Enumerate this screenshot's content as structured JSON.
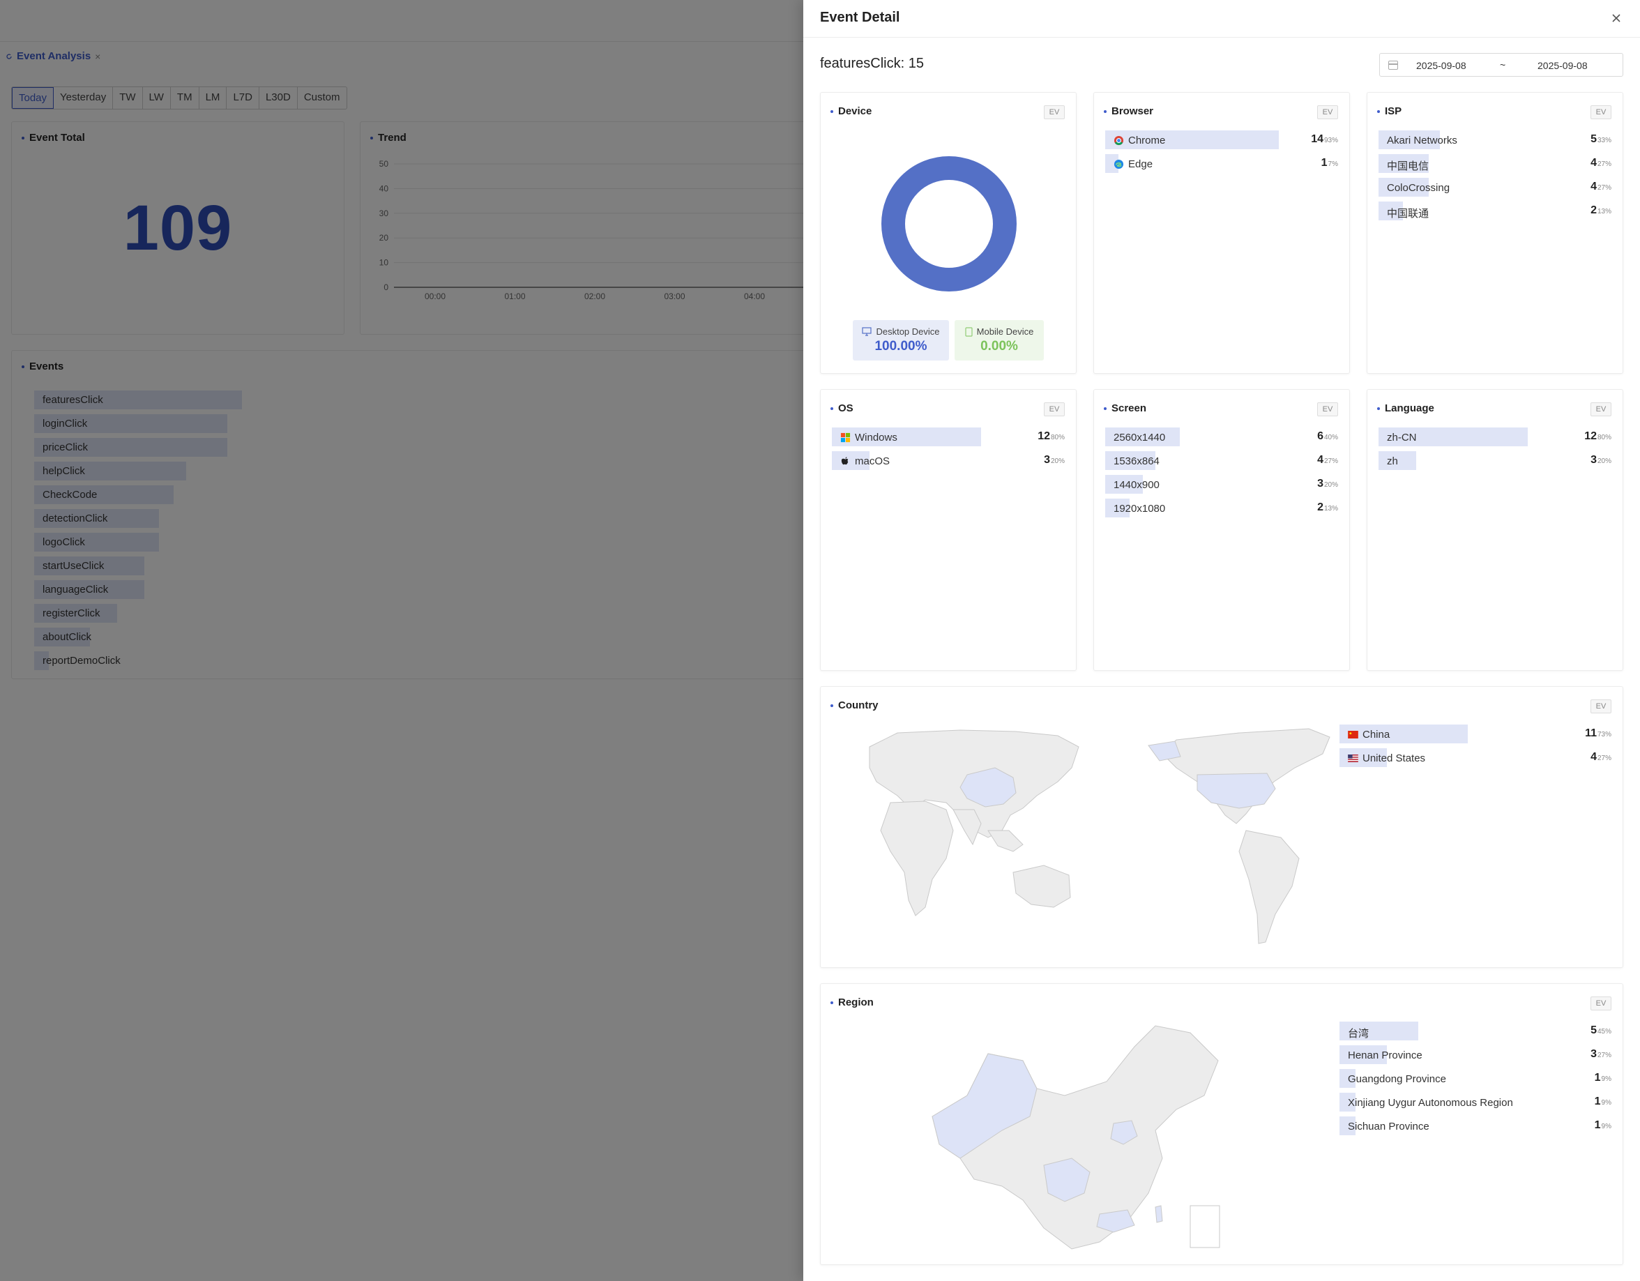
{
  "background": {
    "tab_label": "Event Analysis",
    "tab_close": "×",
    "range_tabs": [
      "Today",
      "Yesterday",
      "TW",
      "LW",
      "TM",
      "LM",
      "L7D",
      "L30D",
      "Custom"
    ],
    "event_total_title": "Event Total",
    "event_total_value": "109",
    "trend_title": "Trend",
    "trend_y_ticks": [
      "50",
      "40",
      "30",
      "20",
      "10",
      "0"
    ],
    "trend_x_ticks": [
      "00:00",
      "01:00",
      "02:00",
      "03:00",
      "04:00"
    ],
    "events_title": "Events",
    "events": [
      {
        "name": "featuresClick",
        "fraction": 1.0
      },
      {
        "name": "loginClick",
        "fraction": 0.93
      },
      {
        "name": "priceClick",
        "fraction": 0.93
      },
      {
        "name": "helpClick",
        "fraction": 0.73
      },
      {
        "name": "CheckCode",
        "fraction": 0.67
      },
      {
        "name": "detectionClick",
        "fraction": 0.6
      },
      {
        "name": "logoClick",
        "fraction": 0.6
      },
      {
        "name": "startUseClick",
        "fraction": 0.53
      },
      {
        "name": "languageClick",
        "fraction": 0.53
      },
      {
        "name": "registerClick",
        "fraction": 0.4
      },
      {
        "name": "aboutClick",
        "fraction": 0.27
      },
      {
        "name": "reportDemoClick",
        "fraction": 0.07
      }
    ]
  },
  "drawer": {
    "title": "Event Detail",
    "close_icon": "close-icon",
    "subtitle": "featuresClick: 15",
    "date_start": "2025-09-08",
    "date_sep": "~",
    "date_end": "2025-09-08",
    "ev_label": "EV",
    "device": {
      "title": "Device",
      "donut_fraction_desktop": 1.0,
      "desktop_label": "Desktop Device",
      "desktop_value": "100.00%",
      "mobile_label": "Mobile Device",
      "mobile_value": "0.00%"
    },
    "browser": {
      "title": "Browser",
      "items": [
        {
          "name": "Chrome",
          "count": "14",
          "pct": "93%",
          "fraction": 0.93,
          "icon": "chrome-icon"
        },
        {
          "name": "Edge",
          "count": "1",
          "pct": "7%",
          "fraction": 0.07,
          "icon": "edge-icon"
        }
      ]
    },
    "isp": {
      "title": "ISP",
      "items": [
        {
          "name": "Akari Networks",
          "count": "5",
          "pct": "33%",
          "fraction": 0.33
        },
        {
          "name": "中国电信",
          "count": "4",
          "pct": "27%",
          "fraction": 0.27
        },
        {
          "name": "ColoCrossing",
          "count": "4",
          "pct": "27%",
          "fraction": 0.27
        },
        {
          "name": "中国联通",
          "count": "2",
          "pct": "13%",
          "fraction": 0.13
        }
      ]
    },
    "os": {
      "title": "OS",
      "items": [
        {
          "name": "Windows",
          "count": "12",
          "pct": "80%",
          "fraction": 0.8,
          "icon": "windows-icon"
        },
        {
          "name": "macOS",
          "count": "3",
          "pct": "20%",
          "fraction": 0.2,
          "icon": "apple-icon"
        }
      ]
    },
    "screen": {
      "title": "Screen",
      "items": [
        {
          "name": "2560x1440",
          "count": "6",
          "pct": "40%",
          "fraction": 0.4
        },
        {
          "name": "1536x864",
          "count": "4",
          "pct": "27%",
          "fraction": 0.27
        },
        {
          "name": "1440x900",
          "count": "3",
          "pct": "20%",
          "fraction": 0.2
        },
        {
          "name": "1920x1080",
          "count": "2",
          "pct": "13%",
          "fraction": 0.13
        }
      ]
    },
    "language": {
      "title": "Language",
      "items": [
        {
          "name": "zh-CN",
          "count": "12",
          "pct": "80%",
          "fraction": 0.8
        },
        {
          "name": "zh",
          "count": "3",
          "pct": "20%",
          "fraction": 0.2
        }
      ]
    },
    "country": {
      "title": "Country",
      "items": [
        {
          "name": "China",
          "count": "11",
          "pct": "73%",
          "fraction": 0.73,
          "icon": "china-flag-icon"
        },
        {
          "name": "United States",
          "count": "4",
          "pct": "27%",
          "fraction": 0.27,
          "icon": "us-flag-icon"
        }
      ]
    },
    "region": {
      "title": "Region",
      "items": [
        {
          "name": "台湾",
          "count": "5",
          "pct": "45%",
          "fraction": 0.45
        },
        {
          "name": "Henan Province",
          "count": "3",
          "pct": "27%",
          "fraction": 0.27
        },
        {
          "name": "Guangdong Province",
          "count": "1",
          "pct": "9%",
          "fraction": 0.09
        },
        {
          "name": "Xinjiang Uygur Autonomous Region",
          "count": "1",
          "pct": "9%",
          "fraction": 0.09
        },
        {
          "name": "Sichuan Province",
          "count": "1",
          "pct": "9%",
          "fraction": 0.09
        }
      ]
    },
    "colors": {
      "accent": "#3f5ccb",
      "bar": "#dfe4f6",
      "donut": "#5470c6",
      "mobile": "#91cc75",
      "map_base": "#ececec",
      "map_hl": "#dde3f7"
    }
  }
}
